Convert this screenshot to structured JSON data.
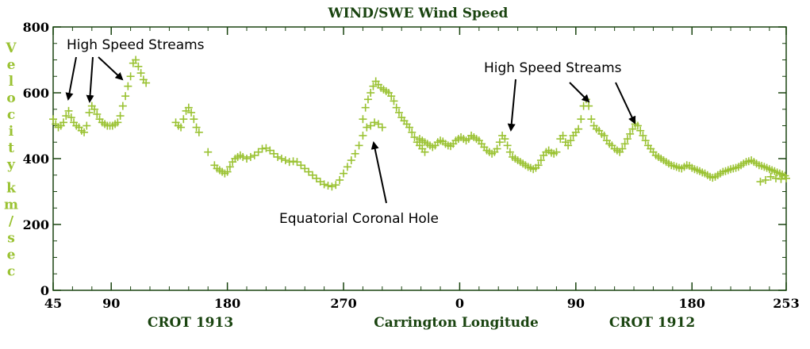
{
  "chart_data": {
    "type": "scatter",
    "title": "WIND/SWE Wind Speed",
    "ylabel_chars": [
      "V",
      "e",
      "l",
      "o",
      "c",
      "i",
      "t",
      "y",
      "k",
      "m",
      "/",
      "s",
      "e",
      "c"
    ],
    "ylabel": "Velocity km/sec",
    "ylim": [
      0,
      800
    ],
    "y_ticks": [
      "0",
      "200",
      "400",
      "600",
      "800"
    ],
    "x_axis": {
      "description": "Carrington Longitude across two rotations (continuous index 0-568)",
      "range": [
        0,
        568
      ],
      "ticks": [
        {
          "pos": 0,
          "label": "45"
        },
        {
          "pos": 45,
          "label": "90"
        },
        {
          "pos": 135,
          "label": "180"
        },
        {
          "pos": 225,
          "label": "270"
        },
        {
          "pos": 315,
          "label": "0"
        },
        {
          "pos": 405,
          "label": "90"
        },
        {
          "pos": 495,
          "label": "180"
        },
        {
          "pos": 568,
          "label": "253"
        }
      ]
    },
    "x_sublabels": {
      "left": "CROT 1913",
      "center": "Carrington Longitude",
      "right": "CROT 1912"
    },
    "marker": "+",
    "color": "#9ac232",
    "series": [
      {
        "points": [
          [
            0,
            520
          ],
          [
            2,
            505
          ],
          [
            4,
            495
          ],
          [
            6,
            500
          ],
          [
            8,
            510
          ],
          [
            10,
            530
          ],
          [
            12,
            545
          ],
          [
            14,
            525
          ],
          [
            16,
            510
          ],
          [
            18,
            500
          ],
          [
            20,
            495
          ],
          [
            22,
            485
          ],
          [
            24,
            480
          ],
          [
            26,
            500
          ],
          [
            28,
            540
          ],
          [
            30,
            560
          ],
          [
            32,
            550
          ],
          [
            34,
            535
          ],
          [
            36,
            520
          ],
          [
            38,
            510
          ],
          [
            40,
            505
          ],
          [
            42,
            500
          ],
          [
            44,
            500
          ],
          [
            46,
            500
          ],
          [
            48,
            505
          ],
          [
            50,
            510
          ],
          [
            52,
            530
          ],
          [
            54,
            560
          ],
          [
            56,
            590
          ],
          [
            58,
            620
          ],
          [
            60,
            650
          ],
          [
            62,
            690
          ],
          [
            64,
            700
          ],
          [
            66,
            680
          ],
          [
            68,
            660
          ],
          [
            70,
            640
          ],
          [
            72,
            630
          ],
          [
            95,
            510
          ],
          [
            97,
            500
          ],
          [
            99,
            495
          ],
          [
            101,
            520
          ],
          [
            103,
            545
          ],
          [
            105,
            555
          ],
          [
            107,
            540
          ],
          [
            109,
            520
          ],
          [
            111,
            495
          ],
          [
            113,
            480
          ],
          [
            120,
            420
          ],
          [
            125,
            380
          ],
          [
            127,
            370
          ],
          [
            129,
            365
          ],
          [
            131,
            360
          ],
          [
            133,
            355
          ],
          [
            135,
            360
          ],
          [
            137,
            375
          ],
          [
            139,
            390
          ],
          [
            141,
            400
          ],
          [
            143,
            405
          ],
          [
            145,
            410
          ],
          [
            147,
            405
          ],
          [
            150,
            400
          ],
          [
            153,
            405
          ],
          [
            156,
            410
          ],
          [
            159,
            420
          ],
          [
            162,
            430
          ],
          [
            165,
            432
          ],
          [
            168,
            425
          ],
          [
            171,
            415
          ],
          [
            174,
            405
          ],
          [
            177,
            400
          ],
          [
            180,
            395
          ],
          [
            183,
            390
          ],
          [
            186,
            392
          ],
          [
            189,
            390
          ],
          [
            192,
            380
          ],
          [
            195,
            370
          ],
          [
            198,
            360
          ],
          [
            201,
            350
          ],
          [
            204,
            340
          ],
          [
            207,
            330
          ],
          [
            210,
            322
          ],
          [
            213,
            318
          ],
          [
            216,
            315
          ],
          [
            219,
            320
          ],
          [
            222,
            335
          ],
          [
            225,
            355
          ],
          [
            228,
            375
          ],
          [
            231,
            395
          ],
          [
            234,
            415
          ],
          [
            237,
            440
          ],
          [
            240,
            470
          ],
          [
            243,
            495
          ],
          [
            246,
            500
          ],
          [
            249,
            510
          ],
          [
            252,
            505
          ],
          [
            255,
            495
          ],
          [
            240,
            520
          ],
          [
            242,
            555
          ],
          [
            244,
            580
          ],
          [
            246,
            600
          ],
          [
            248,
            620
          ],
          [
            250,
            635
          ],
          [
            252,
            625
          ],
          [
            254,
            615
          ],
          [
            256,
            610
          ],
          [
            258,
            605
          ],
          [
            260,
            600
          ],
          [
            262,
            590
          ],
          [
            264,
            575
          ],
          [
            266,
            555
          ],
          [
            268,
            540
          ],
          [
            270,
            525
          ],
          [
            272,
            515
          ],
          [
            274,
            505
          ],
          [
            276,
            495
          ],
          [
            278,
            480
          ],
          [
            280,
            465
          ],
          [
            282,
            450
          ],
          [
            284,
            440
          ],
          [
            286,
            430
          ],
          [
            288,
            420
          ],
          [
            284,
            460
          ],
          [
            286,
            455
          ],
          [
            288,
            450
          ],
          [
            290,
            445
          ],
          [
            292,
            440
          ],
          [
            294,
            435
          ],
          [
            296,
            440
          ],
          [
            298,
            450
          ],
          [
            300,
            455
          ],
          [
            302,
            452
          ],
          [
            304,
            445
          ],
          [
            306,
            440
          ],
          [
            308,
            438
          ],
          [
            310,
            445
          ],
          [
            312,
            455
          ],
          [
            314,
            460
          ],
          [
            316,
            465
          ],
          [
            318,
            460
          ],
          [
            320,
            455
          ],
          [
            322,
            460
          ],
          [
            324,
            470
          ],
          [
            326,
            465
          ],
          [
            328,
            460
          ],
          [
            330,
            455
          ],
          [
            332,
            445
          ],
          [
            334,
            435
          ],
          [
            336,
            425
          ],
          [
            338,
            420
          ],
          [
            340,
            415
          ],
          [
            342,
            420
          ],
          [
            344,
            430
          ],
          [
            346,
            450
          ],
          [
            348,
            470
          ],
          [
            350,
            460
          ],
          [
            352,
            440
          ],
          [
            354,
            420
          ],
          [
            356,
            405
          ],
          [
            358,
            400
          ],
          [
            360,
            395
          ],
          [
            362,
            390
          ],
          [
            364,
            385
          ],
          [
            366,
            380
          ],
          [
            368,
            375
          ],
          [
            370,
            372
          ],
          [
            372,
            368
          ],
          [
            374,
            372
          ],
          [
            376,
            380
          ],
          [
            378,
            395
          ],
          [
            380,
            410
          ],
          [
            382,
            420
          ],
          [
            384,
            425
          ],
          [
            386,
            418
          ],
          [
            388,
            415
          ],
          [
            390,
            420
          ],
          [
            393,
            460
          ],
          [
            395,
            470
          ],
          [
            397,
            450
          ],
          [
            399,
            440
          ],
          [
            401,
            455
          ],
          [
            403,
            470
          ],
          [
            405,
            480
          ],
          [
            407,
            490
          ],
          [
            409,
            520
          ],
          [
            411,
            560
          ],
          [
            413,
            580
          ],
          [
            415,
            560
          ],
          [
            417,
            520
          ],
          [
            419,
            500
          ],
          [
            421,
            490
          ],
          [
            423,
            485
          ],
          [
            425,
            475
          ],
          [
            427,
            470
          ],
          [
            429,
            455
          ],
          [
            431,
            445
          ],
          [
            433,
            440
          ],
          [
            435,
            430
          ],
          [
            437,
            425
          ],
          [
            439,
            420
          ],
          [
            441,
            430
          ],
          [
            443,
            445
          ],
          [
            445,
            460
          ],
          [
            447,
            475
          ],
          [
            449,
            490
          ],
          [
            451,
            505
          ],
          [
            453,
            500
          ],
          [
            455,
            485
          ],
          [
            457,
            470
          ],
          [
            459,
            455
          ],
          [
            461,
            440
          ],
          [
            463,
            430
          ],
          [
            465,
            420
          ],
          [
            467,
            410
          ],
          [
            469,
            405
          ],
          [
            471,
            400
          ],
          [
            473,
            395
          ],
          [
            475,
            390
          ],
          [
            477,
            385
          ],
          [
            479,
            380
          ],
          [
            481,
            378
          ],
          [
            483,
            375
          ],
          [
            485,
            372
          ],
          [
            487,
            370
          ],
          [
            489,
            375
          ],
          [
            491,
            380
          ],
          [
            493,
            378
          ],
          [
            495,
            372
          ],
          [
            497,
            368
          ],
          [
            499,
            365
          ],
          [
            501,
            362
          ],
          [
            503,
            358
          ],
          [
            505,
            355
          ],
          [
            507,
            350
          ],
          [
            509,
            345
          ],
          [
            511,
            342
          ],
          [
            513,
            345
          ],
          [
            515,
            350
          ],
          [
            517,
            355
          ],
          [
            519,
            360
          ],
          [
            521,
            362
          ],
          [
            523,
            365
          ],
          [
            525,
            368
          ],
          [
            527,
            370
          ],
          [
            529,
            372
          ],
          [
            531,
            375
          ],
          [
            533,
            380
          ],
          [
            535,
            385
          ],
          [
            537,
            390
          ],
          [
            539,
            392
          ],
          [
            541,
            395
          ],
          [
            543,
            390
          ],
          [
            545,
            385
          ],
          [
            547,
            380
          ],
          [
            549,
            378
          ],
          [
            551,
            375
          ],
          [
            553,
            372
          ],
          [
            555,
            368
          ],
          [
            557,
            365
          ],
          [
            559,
            362
          ],
          [
            561,
            358
          ],
          [
            563,
            355
          ],
          [
            565,
            352
          ],
          [
            567,
            348
          ],
          [
            548,
            330
          ],
          [
            552,
            335
          ],
          [
            556,
            345
          ],
          [
            560,
            340
          ],
          [
            564,
            338
          ],
          [
            568,
            340
          ]
        ]
      }
    ],
    "annotations": [
      {
        "text": "High Speed Streams"
      },
      {
        "text": "High Speed Streams"
      },
      {
        "text": "Equatorial Coronal Hole"
      }
    ]
  }
}
